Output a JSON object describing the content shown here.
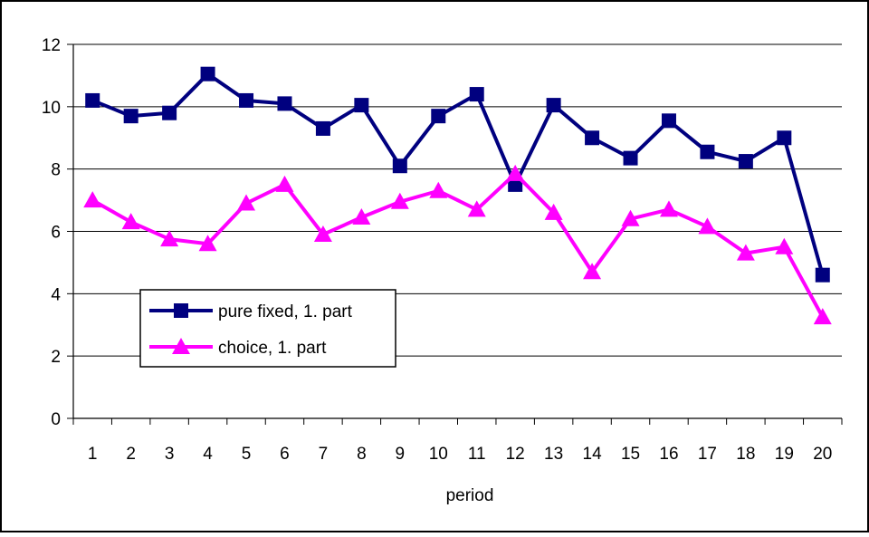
{
  "chart_data": {
    "type": "line",
    "title": "",
    "xlabel": "period",
    "ylabel": "",
    "ylim": [
      0,
      12
    ],
    "yticks": [
      "0",
      "2",
      "4",
      "6",
      "8",
      "10",
      "12"
    ],
    "categories": [
      "1",
      "2",
      "3",
      "4",
      "5",
      "6",
      "7",
      "8",
      "9",
      "10",
      "11",
      "12",
      "13",
      "14",
      "15",
      "16",
      "17",
      "18",
      "19",
      "20"
    ],
    "grid": "horizontal",
    "legend_position": "left-lower-middle",
    "series": [
      {
        "name": "pure fixed, 1. part",
        "color": "#00007f",
        "marker": "square",
        "values": [
          10.2,
          9.7,
          9.8,
          11.05,
          10.2,
          10.1,
          9.3,
          10.05,
          8.1,
          9.7,
          10.4,
          7.5,
          10.05,
          9.0,
          8.35,
          9.55,
          8.55,
          8.25,
          9.0,
          4.6
        ]
      },
      {
        "name": "choice, 1. part",
        "color": "#ff00ff",
        "marker": "triangle",
        "values": [
          7.0,
          6.3,
          5.75,
          5.6,
          6.9,
          7.5,
          5.9,
          6.45,
          6.95,
          7.3,
          6.7,
          7.85,
          6.6,
          4.7,
          6.4,
          6.7,
          6.15,
          5.3,
          5.5,
          3.25
        ]
      }
    ]
  }
}
